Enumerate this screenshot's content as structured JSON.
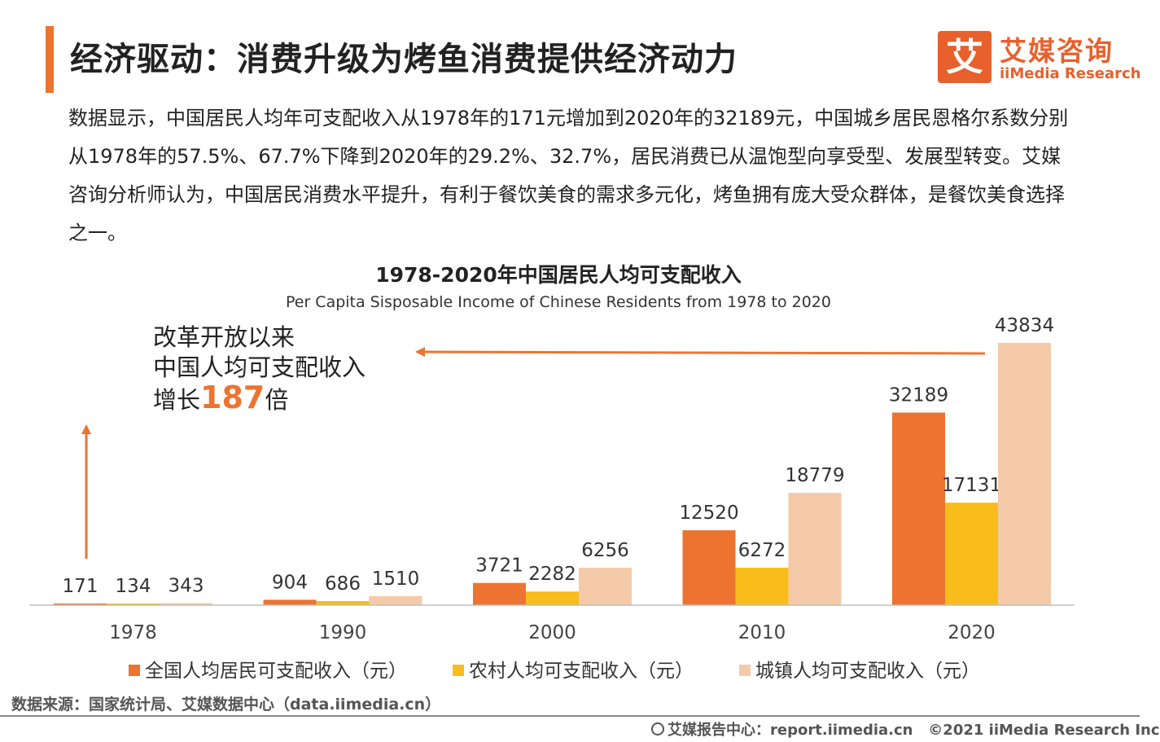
{
  "header": {
    "title": "经济驱动：消费升级为烤鱼消费提供经济动力",
    "logo_mark": "艾",
    "logo_cn": "艾媒咨询",
    "logo_en": "iiMedia Research"
  },
  "description": "数据显示，中国居民人均年可支配收入从1978年的171元增加到2020年的32189元，中国城乡居民恩格尔系数分别从1978年的57.5%、67.7%下降到2020年的29.2%、32.7%，居民消费已从温饱型向享受型、发展型转变。艾媒咨询分析师认为，中国居民消费水平提升，有利于餐饮美食的需求多元化，烤鱼拥有庞大受众群体，是餐饮美食选择之一。",
  "annotation": {
    "line1": "改革开放以来",
    "line2": "中国人均可支配收入",
    "line3_pre": "增长",
    "line3_num": "187",
    "line3_post": "倍"
  },
  "chart_data": {
    "type": "bar",
    "title": "1978-2020年中国居民人均可支配收入",
    "subtitle": "Per Capita Sisposable Income of Chinese Residents from 1978 to 2020",
    "categories": [
      "1978",
      "1990",
      "2000",
      "2010",
      "2020"
    ],
    "series": [
      {
        "name": "全国人均居民可支配收入（元）",
        "color": "#ed7430",
        "values": [
          171,
          904,
          3721,
          12520,
          32189
        ]
      },
      {
        "name": "农村人均可支配收入（元）",
        "color": "#f8bc1b",
        "values": [
          134,
          686,
          2282,
          6272,
          17131
        ]
      },
      {
        "name": "城镇人均可支配收入（元）",
        "color": "#f4caa9",
        "values": [
          343,
          1510,
          6256,
          18779,
          43834
        ]
      }
    ],
    "ylim": [
      0,
      43834
    ],
    "grid": false,
    "legend": "bottom"
  },
  "source": "数据来源：国家统计局、艾媒数据中心（data.iimedia.cn）",
  "footer": {
    "report": "艾媒报告中心：report.iimedia.cn",
    "copyright": "©2021  iiMedia Research  Inc"
  }
}
